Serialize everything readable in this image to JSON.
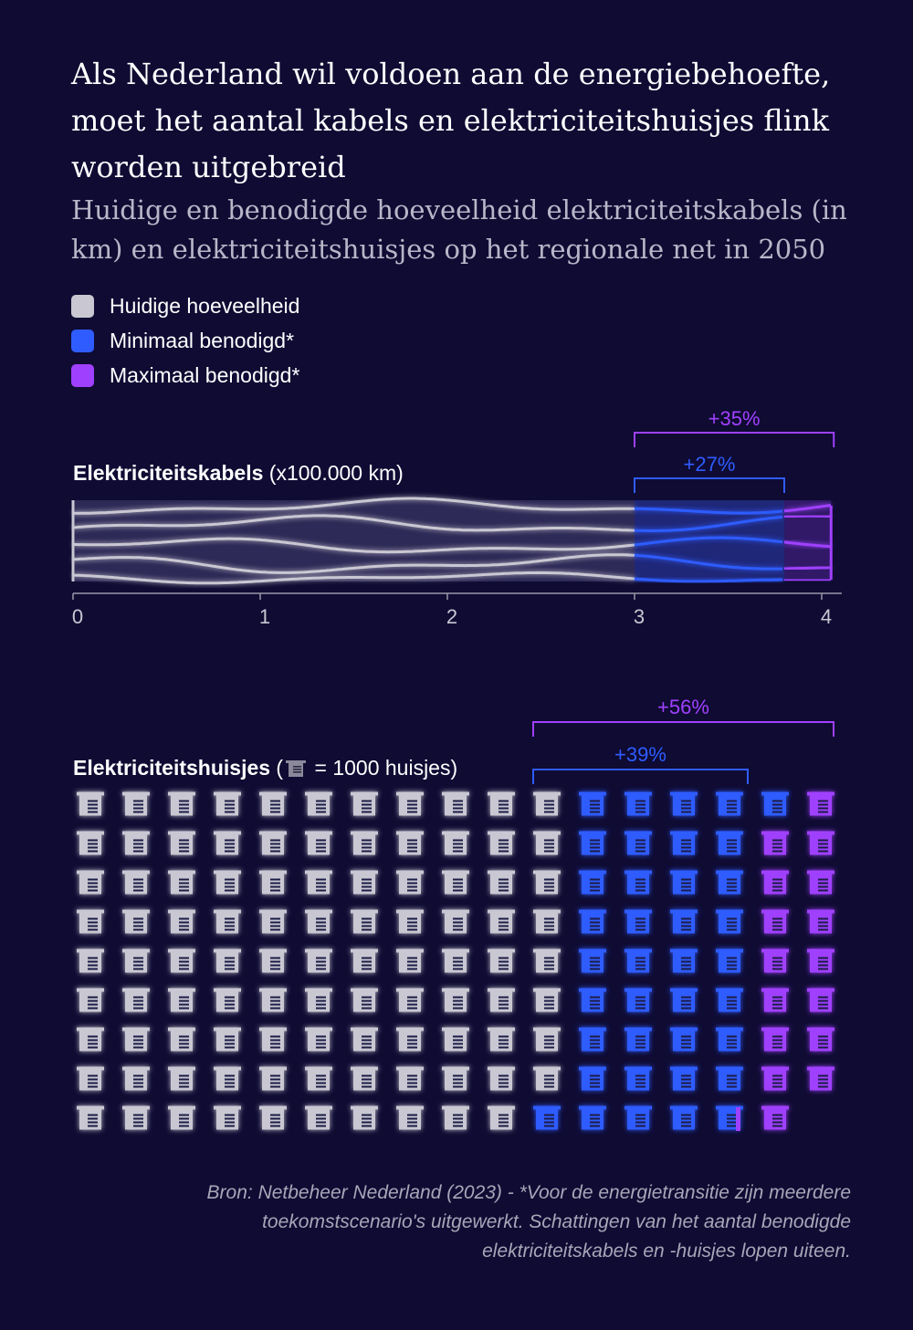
{
  "title": "Als Nederland wil voldoen aan de energiebehoefte, moet het aantal kabels en elektriciteitshuisjes flink worden uitgebreid",
  "subtitle": "Huidige en benodigde hoeveelheid elektriciteitskabels (in km) en elektriciteitshuisjes op het regionale net in 2050",
  "legend": [
    {
      "label": "Huidige hoeveelheid",
      "color": "#c9c7d2"
    },
    {
      "label": "Minimaal benodigd*",
      "color": "#2f5cff"
    },
    {
      "label": "Maximaal benodigd*",
      "color": "#a040ff"
    }
  ],
  "colors": {
    "current": "#c9c7d2",
    "min": "#2f5cff",
    "max": "#a040ff",
    "background": "#0f0b33"
  },
  "cables": {
    "label_bold": "Elektriciteitskabels",
    "label_rest": " (x100.000 km)"
  },
  "houses": {
    "label_bold": "Elektriciteitshuisjes",
    "label_open": " (",
    "label_close": " = 1000 huisjes)",
    "icon": "substation-house-icon"
  },
  "source": "Bron: Netbeheer Nederland (2023) - *Voor de energietransitie zijn meerdere toekomstscenario's uitgewerkt. Schattingen van het aantal benodigde elektriciteitskabels en -huisjes lopen uiteen.",
  "chart_data": [
    {
      "type": "bar",
      "title": "Elektriciteitskabels (x100.000 km)",
      "xlabel": "",
      "ylabel": "",
      "xlim": [
        0,
        4
      ],
      "x_ticks": [
        0,
        1,
        2,
        3,
        4
      ],
      "tick_labels": [
        "0",
        "1",
        "2",
        "3",
        "4"
      ],
      "series": [
        {
          "name": "Huidige hoeveelheid",
          "value": 3.0
        },
        {
          "name": "Minimaal benodigd*",
          "value": 3.8,
          "annotation": "+27%"
        },
        {
          "name": "Maximaal benodigd*",
          "value": 4.05,
          "annotation": "+35%"
        }
      ]
    },
    {
      "type": "bar",
      "title": "Elektriciteitshuisjes (= 1000 huisjes)",
      "unit": "1000 huisjes per icoon",
      "series": [
        {
          "name": "Huidige hoeveelheid",
          "value": 98
        },
        {
          "name": "Minimaal benodigd*",
          "value": 136,
          "annotation": "+39%"
        },
        {
          "name": "Maximaal benodigd*",
          "value": 153,
          "annotation": "+56%"
        }
      ]
    }
  ]
}
